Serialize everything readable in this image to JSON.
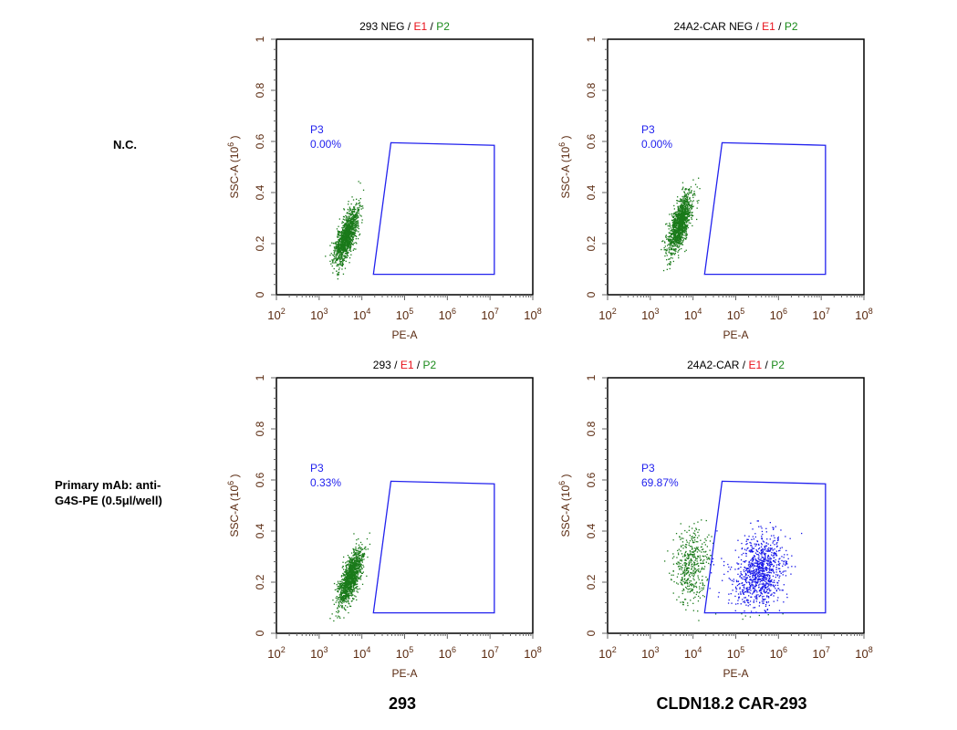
{
  "row_labels": [
    "N.C.",
    "Primary mAb: anti-G4S-PE (0.5μl/well)"
  ],
  "row_label_lines": [
    [
      "N.C."
    ],
    [
      "Primary mAb: anti-",
      "G4S-PE (0.5μl/well)"
    ]
  ],
  "column_labels": [
    "293",
    "CLDN18.2 CAR-293"
  ],
  "colors": {
    "title_name": "#000000",
    "e1": "#e8101a",
    "p2": "#1a8a1a",
    "gate": "#2222ee",
    "gated_events": "#1515e8",
    "events": "#1a7a1a",
    "axis_text": "#5a2a10"
  },
  "chart_data": [
    {
      "type": "scatter",
      "title": {
        "name": "293 NEG",
        "sep": " / ",
        "e1": "E1",
        "p2": "P2"
      },
      "xlabel": "PE-A",
      "ylabel": "SSC-A (10",
      "ylabel_exp": "6",
      "ylabel_close": ")",
      "xscale": "log",
      "xlim_log10": [
        2,
        8
      ],
      "ylim": [
        0,
        1
      ],
      "xticks": [
        "2",
        "3",
        "4",
        "5",
        "6",
        "7",
        "8"
      ],
      "xtick_base": "10",
      "yticks": [
        "0",
        "0.2",
        "0.4",
        "0.6",
        "0.8",
        "1"
      ],
      "gate": {
        "name": "P3",
        "percent": "0.00%",
        "vertices_log10x_y": [
          [
            4.27,
            0.08
          ],
          [
            4.68,
            0.595
          ],
          [
            7.1,
            0.585
          ],
          [
            7.1,
            0.08
          ]
        ]
      },
      "populations": [
        {
          "n": 1300,
          "log10x_mean": 3.62,
          "log10x_sd": 0.14,
          "y_mean": 0.23,
          "y_sd": 0.055,
          "corr": 0.7,
          "seed": 11
        }
      ]
    },
    {
      "type": "scatter",
      "title": {
        "name": "24A2-CAR NEG",
        "sep": " / ",
        "e1": "E1",
        "p2": "P2"
      },
      "xlabel": "PE-A",
      "ylabel": "SSC-A (10",
      "ylabel_exp": "6",
      "ylabel_close": ")",
      "xscale": "log",
      "xlim_log10": [
        2,
        8
      ],
      "ylim": [
        0,
        1
      ],
      "xticks": [
        "2",
        "3",
        "4",
        "5",
        "6",
        "7",
        "8"
      ],
      "xtick_base": "10",
      "yticks": [
        "0",
        "0.2",
        "0.4",
        "0.6",
        "0.8",
        "1"
      ],
      "gate": {
        "name": "P3",
        "percent": "0.00%",
        "vertices_log10x_y": [
          [
            4.27,
            0.08
          ],
          [
            4.68,
            0.595
          ],
          [
            7.1,
            0.585
          ],
          [
            7.1,
            0.08
          ]
        ]
      },
      "populations": [
        {
          "n": 1300,
          "log10x_mean": 3.68,
          "log10x_sd": 0.14,
          "y_mean": 0.28,
          "y_sd": 0.06,
          "corr": 0.7,
          "seed": 22
        }
      ]
    },
    {
      "type": "scatter",
      "title": {
        "name": "293",
        "sep": " / ",
        "e1": "E1",
        "p2": "P2"
      },
      "xlabel": "PE-A",
      "ylabel": "SSC-A (10",
      "ylabel_exp": "6",
      "ylabel_close": ")",
      "xscale": "log",
      "xlim_log10": [
        2,
        8
      ],
      "ylim": [
        0,
        1
      ],
      "xticks": [
        "2",
        "3",
        "4",
        "5",
        "6",
        "7",
        "8"
      ],
      "xtick_base": "10",
      "yticks": [
        "0",
        "0.2",
        "0.4",
        "0.6",
        "0.8",
        "1"
      ],
      "gate": {
        "name": "P3",
        "percent": "0.33%",
        "vertices_log10x_y": [
          [
            4.27,
            0.08
          ],
          [
            4.68,
            0.595
          ],
          [
            7.1,
            0.585
          ],
          [
            7.1,
            0.08
          ]
        ]
      },
      "populations": [
        {
          "n": 1300,
          "log10x_mean": 3.72,
          "log10x_sd": 0.14,
          "y_mean": 0.22,
          "y_sd": 0.055,
          "corr": 0.7,
          "seed": 33
        }
      ]
    },
    {
      "type": "scatter",
      "title": {
        "name": "24A2-CAR",
        "sep": " / ",
        "e1": "E1",
        "p2": "P2"
      },
      "xlabel": "PE-A",
      "ylabel": "SSC-A (10",
      "ylabel_exp": "6",
      "ylabel_close": ")",
      "xscale": "log",
      "xlim_log10": [
        2,
        8
      ],
      "ylim": [
        0,
        1
      ],
      "xticks": [
        "2",
        "3",
        "4",
        "5",
        "6",
        "7",
        "8"
      ],
      "xtick_base": "10",
      "yticks": [
        "0",
        "0.2",
        "0.4",
        "0.6",
        "0.8",
        "1"
      ],
      "gate": {
        "name": "P3",
        "percent": "69.87%",
        "vertices_log10x_y": [
          [
            4.27,
            0.08
          ],
          [
            4.68,
            0.595
          ],
          [
            7.1,
            0.585
          ],
          [
            7.1,
            0.08
          ]
        ]
      },
      "populations": [
        {
          "n": 450,
          "log10x_mean": 3.95,
          "log10x_sd": 0.22,
          "y_mean": 0.26,
          "y_sd": 0.07,
          "corr": 0.2,
          "seed": 44
        },
        {
          "n": 950,
          "log10x_mean": 5.55,
          "log10x_sd": 0.3,
          "y_mean": 0.24,
          "y_sd": 0.07,
          "corr": 0.2,
          "seed": 55
        }
      ]
    }
  ]
}
